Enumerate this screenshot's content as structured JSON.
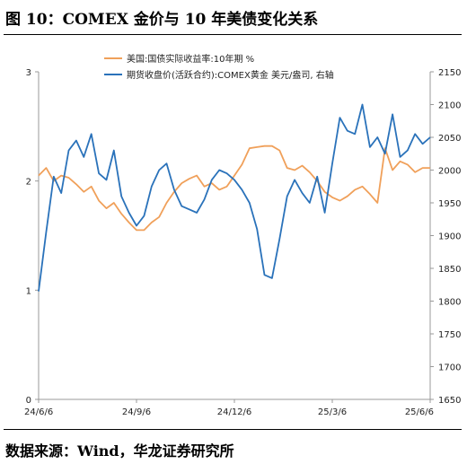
{
  "figure": {
    "title": "图 10：COMEX 金价与 10 年美债变化关系",
    "source": "数据来源：Wind，华龙证券研究所"
  },
  "colors": {
    "treasury": "#F0A05A",
    "gold": "#2A72BA",
    "axis": "#999999"
  },
  "chart_data": {
    "type": "line",
    "legend_position": "top-center",
    "grid": false,
    "x_ticks": [
      "24/6/6",
      "24/9/6",
      "24/12/6",
      "25/3/6",
      "25/6/6"
    ],
    "y_left": {
      "min": 0,
      "max": 3,
      "ticks": [
        0,
        1,
        2,
        3
      ]
    },
    "y_right": {
      "min": 1650,
      "max": 2150,
      "ticks": [
        1650,
        1700,
        1750,
        1800,
        1850,
        1900,
        1950,
        2000,
        2050,
        2100,
        2150
      ]
    },
    "series": [
      {
        "name": "美国:国债实际收益率:10年期 %",
        "axis": "left",
        "color_key": "treasury",
        "x": [
          "24/6/6",
          "24/6/13",
          "24/6/20",
          "24/6/27",
          "24/7/4",
          "24/7/11",
          "24/7/18",
          "24/7/25",
          "24/8/1",
          "24/8/8",
          "24/8/15",
          "24/8/22",
          "24/8/29",
          "24/9/6",
          "24/9/13",
          "24/9/20",
          "24/9/27",
          "24/10/4",
          "24/10/11",
          "24/10/18",
          "24/10/25",
          "24/11/1",
          "24/11/8",
          "24/11/15",
          "24/11/22",
          "24/11/29",
          "24/12/6",
          "24/12/13",
          "24/12/20",
          "24/12/27",
          "25/1/3",
          "25/1/10",
          "25/1/17",
          "25/1/24",
          "25/1/31",
          "25/2/7",
          "25/2/14",
          "25/2/21",
          "25/2/28",
          "25/3/6",
          "25/3/13",
          "25/3/20",
          "25/3/27",
          "25/4/3",
          "25/4/10",
          "25/4/17",
          "25/4/24",
          "25/5/1",
          "25/5/8",
          "25/5/15",
          "25/5/22",
          "25/5/29",
          "25/6/6"
        ],
        "values": [
          2.05,
          2.12,
          2.0,
          2.05,
          2.03,
          1.97,
          1.9,
          1.95,
          1.82,
          1.75,
          1.8,
          1.7,
          1.62,
          1.55,
          1.55,
          1.62,
          1.67,
          1.8,
          1.9,
          1.98,
          2.02,
          2.05,
          1.95,
          1.98,
          1.92,
          1.95,
          2.05,
          2.15,
          2.3,
          2.31,
          2.32,
          2.32,
          2.28,
          2.12,
          2.1,
          2.14,
          2.08,
          2.0,
          1.9,
          1.85,
          1.82,
          1.86,
          1.92,
          1.95,
          1.88,
          1.8,
          2.3,
          2.1,
          2.18,
          2.15,
          2.08,
          2.12,
          2.12
        ]
      },
      {
        "name": "期货收盘价(活跃合约):COMEX黄金 美元/盎司, 右轴",
        "axis": "right",
        "color_key": "gold",
        "x": [
          "24/6/6",
          "24/6/13",
          "24/6/20",
          "24/6/27",
          "24/7/4",
          "24/7/11",
          "24/7/18",
          "24/7/25",
          "24/8/1",
          "24/8/8",
          "24/8/15",
          "24/8/22",
          "24/8/29",
          "24/9/6",
          "24/9/13",
          "24/9/20",
          "24/9/27",
          "24/10/4",
          "24/10/11",
          "24/10/18",
          "24/10/25",
          "24/11/1",
          "24/11/8",
          "24/11/15",
          "24/11/22",
          "24/11/29",
          "24/12/6",
          "24/12/13",
          "24/12/20",
          "24/12/27",
          "25/1/3",
          "25/1/10",
          "25/1/17",
          "25/1/24",
          "25/1/31",
          "25/2/7",
          "25/2/14",
          "25/2/21",
          "25/2/28",
          "25/3/6",
          "25/3/13",
          "25/3/20",
          "25/3/27",
          "25/4/3",
          "25/4/10",
          "25/4/17",
          "25/4/24",
          "25/5/1",
          "25/5/8",
          "25/5/15",
          "25/5/22",
          "25/5/29",
          "25/6/6"
        ],
        "values": [
          1815,
          1905,
          1990,
          1965,
          2030,
          2045,
          2020,
          2055,
          1995,
          1985,
          2030,
          1960,
          1935,
          1915,
          1930,
          1975,
          2000,
          2010,
          1970,
          1945,
          1940,
          1935,
          1955,
          1985,
          2000,
          1995,
          1985,
          1970,
          1950,
          1910,
          1840,
          1835,
          1895,
          1960,
          1985,
          1965,
          1950,
          1990,
          1935,
          2010,
          2080,
          2060,
          2055,
          2100,
          2035,
          2050,
          2025,
          2085,
          2020,
          2030,
          2055,
          2040,
          2050
        ]
      }
    ]
  }
}
